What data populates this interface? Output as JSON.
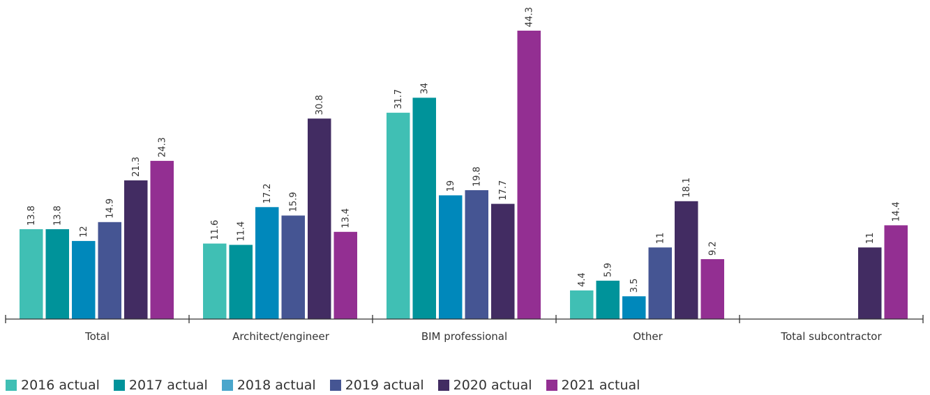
{
  "chart_data": {
    "type": "bar",
    "categories": [
      "Total",
      "Architect/engineer",
      "BIM professional",
      "Other",
      "Total subcontractor"
    ],
    "series": [
      {
        "name": "2016 actual",
        "color": "#40bfb4",
        "values": [
          13.8,
          11.6,
          31.7,
          4.4,
          null
        ]
      },
      {
        "name": "2017 actual",
        "color": "#00939a",
        "values": [
          13.8,
          11.4,
          34,
          5.9,
          null
        ]
      },
      {
        "name": "2018 actual",
        "color": "#0088bb",
        "values": [
          12,
          17.2,
          19,
          3.5,
          null
        ]
      },
      {
        "name": "2019 actual",
        "color": "#455593",
        "values": [
          14.9,
          15.9,
          19.8,
          11,
          null
        ]
      },
      {
        "name": "2020 actual",
        "color": "#422c62",
        "values": [
          21.3,
          30.8,
          17.7,
          18.1,
          11
        ]
      },
      {
        "name": "2021 actual",
        "color": "#932f92",
        "values": [
          24.3,
          13.4,
          44.3,
          9.2,
          14.4
        ]
      }
    ],
    "value_labels": [
      [
        "13.8",
        "11.6",
        "31.7",
        "4.4",
        ""
      ],
      [
        "13.8",
        "11.4",
        "34",
        "5.9",
        ""
      ],
      [
        "12",
        "17.2",
        "19",
        "3.5",
        ""
      ],
      [
        "14.9",
        "15.9",
        "19.8",
        "11",
        ""
      ],
      [
        "21.3",
        "30.8",
        "17.7",
        "18.1",
        "11"
      ],
      [
        "24.3",
        "13.4",
        "44.3",
        "9.2",
        "14.4"
      ]
    ],
    "legend_colors": [
      "#40bfb4",
      "#00939a",
      "#4aa6cc",
      "#455593",
      "#422c62",
      "#932f92"
    ],
    "ylim": [
      0,
      44.3
    ],
    "grid": false,
    "legend_position": "bottom-left",
    "data_labels_rotated": true
  }
}
